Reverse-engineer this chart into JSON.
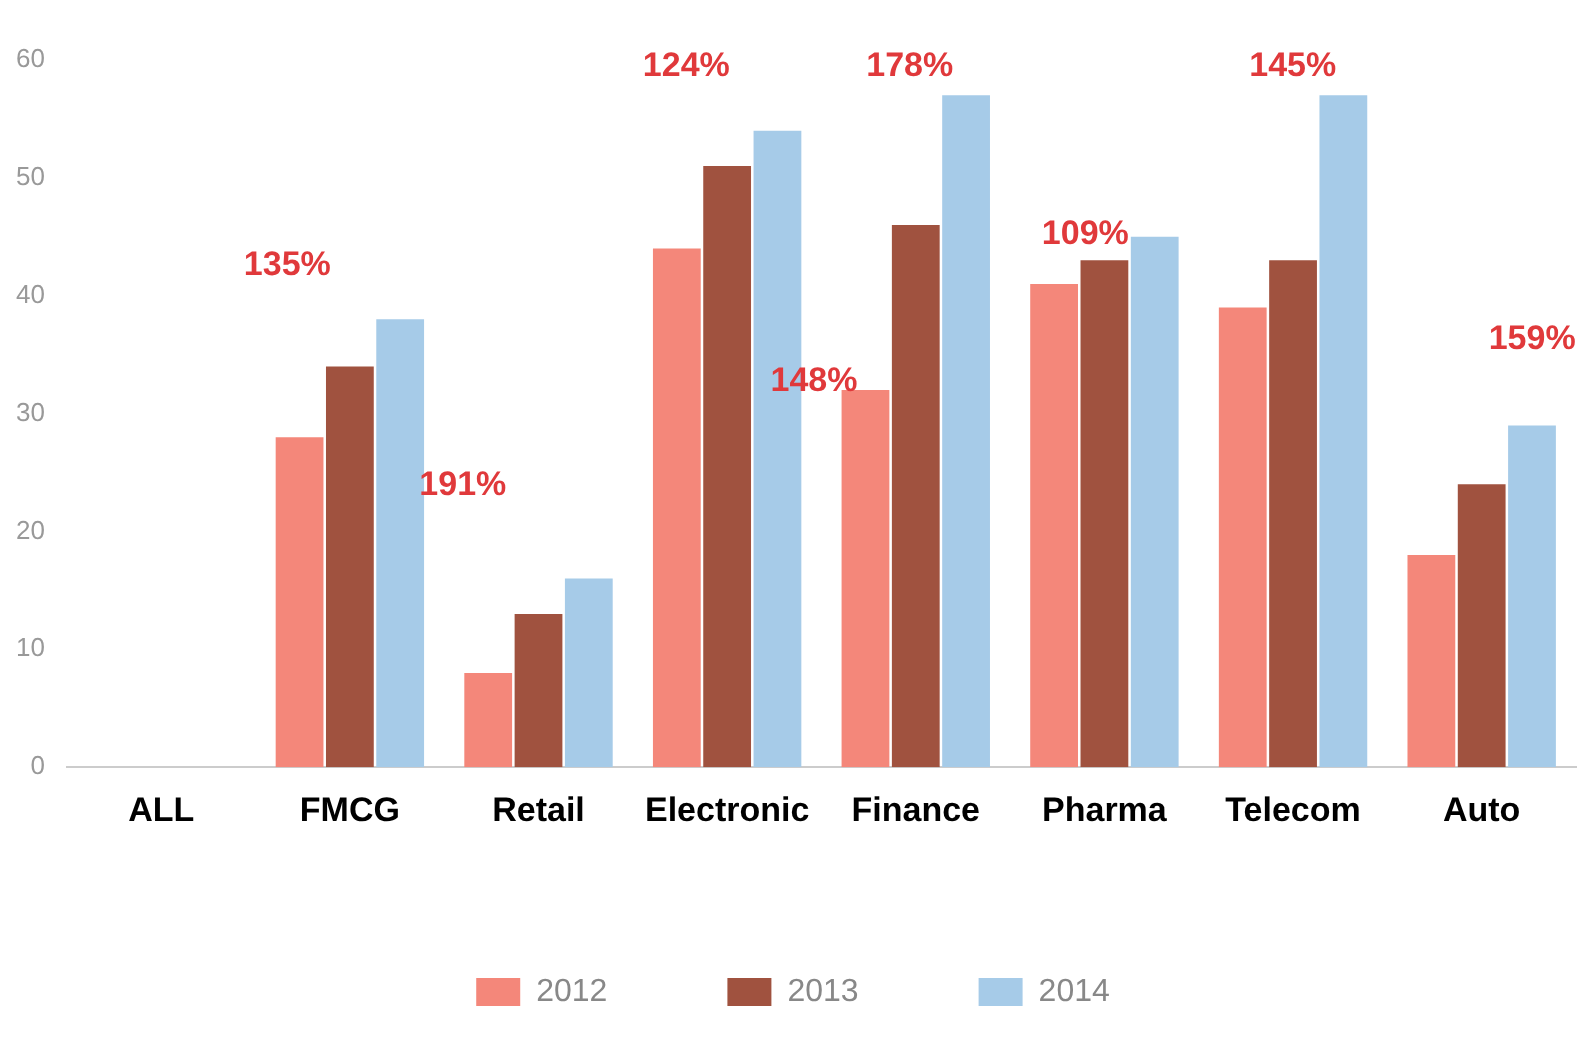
{
  "chart_data": {
    "type": "bar",
    "categories": [
      "ALL",
      "FMCG",
      "Retail",
      "Electronic",
      "Finance",
      "Pharma",
      "Telecom",
      "Auto"
    ],
    "series": [
      {
        "name": "2012",
        "color": "#f4877a",
        "values": [
          null,
          28,
          8,
          44,
          32,
          41,
          39,
          18
        ]
      },
      {
        "name": "2013",
        "color": "#a0523f",
        "values": [
          null,
          34,
          13,
          51,
          46,
          43,
          43,
          24
        ]
      },
      {
        "name": "2014",
        "color": "#a6cbe8",
        "values": [
          null,
          38,
          16,
          54,
          57,
          45,
          57,
          29
        ]
      }
    ],
    "ylim": [
      0,
      60
    ],
    "yticks": [
      0,
      10,
      20,
      30,
      40,
      50,
      60
    ],
    "grid": false,
    "legend": "bottom",
    "annotations": [
      "135%",
      "191%",
      "124%",
      "148%",
      "178%",
      "109%",
      "145%",
      "159%"
    ]
  }
}
